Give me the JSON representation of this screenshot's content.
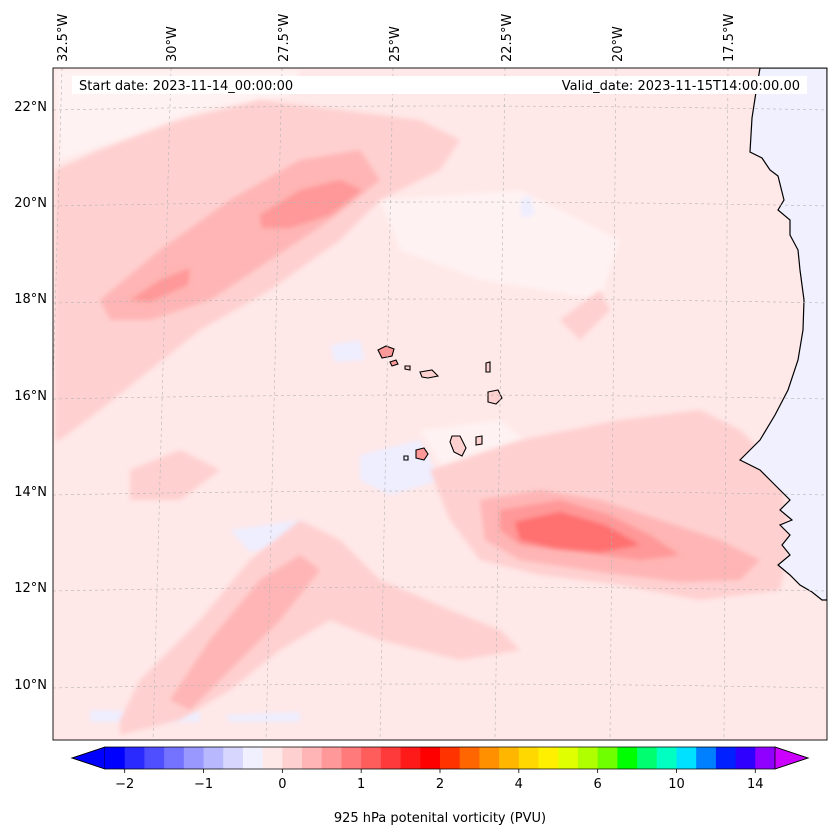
{
  "header": {
    "start_date": "Start date: 2023-11-14_00:00:00",
    "valid_date": "Valid_date: 2023-11-15T14:00:00.00"
  },
  "map": {
    "lon_labels": [
      "32.5°W",
      "30°W",
      "27.5°W",
      "25°W",
      "22.5°W",
      "20°W",
      "17.5°W"
    ],
    "lat_labels": [
      "22°N",
      "20°N",
      "18°N",
      "16°N",
      "14°N",
      "12°N",
      "10°N"
    ],
    "background_color": "#ffe8e8",
    "land_color": "#f0f0ff"
  },
  "colorbar": {
    "label": "925 hPa potenital vorticity (PVU)",
    "tick_labels": [
      "−2",
      "−1",
      "0",
      "1",
      "2",
      "4",
      "6",
      "10",
      "14"
    ],
    "colors": [
      "#0000ff",
      "#2a2aff",
      "#4f4fff",
      "#7373ff",
      "#9898ff",
      "#b8b8ff",
      "#d6d6ff",
      "#f0f0ff",
      "#ffe8e8",
      "#ffd0d0",
      "#ffb5b5",
      "#ff9898",
      "#ff7a7a",
      "#ff5c5c",
      "#ff3a3a",
      "#ff1a1a",
      "#ff0000",
      "#ff3300",
      "#ff6600",
      "#ff9000",
      "#ffb600",
      "#ffd800",
      "#fff000",
      "#e0ff00",
      "#b0ff00",
      "#70ff00",
      "#00ff00",
      "#00ff70",
      "#00ffc0",
      "#00e0ff",
      "#0080ff",
      "#0020ff",
      "#3000ff",
      "#9000ff"
    ],
    "extend_low_color": "#0000ff",
    "extend_high_color": "#cc00ff"
  }
}
